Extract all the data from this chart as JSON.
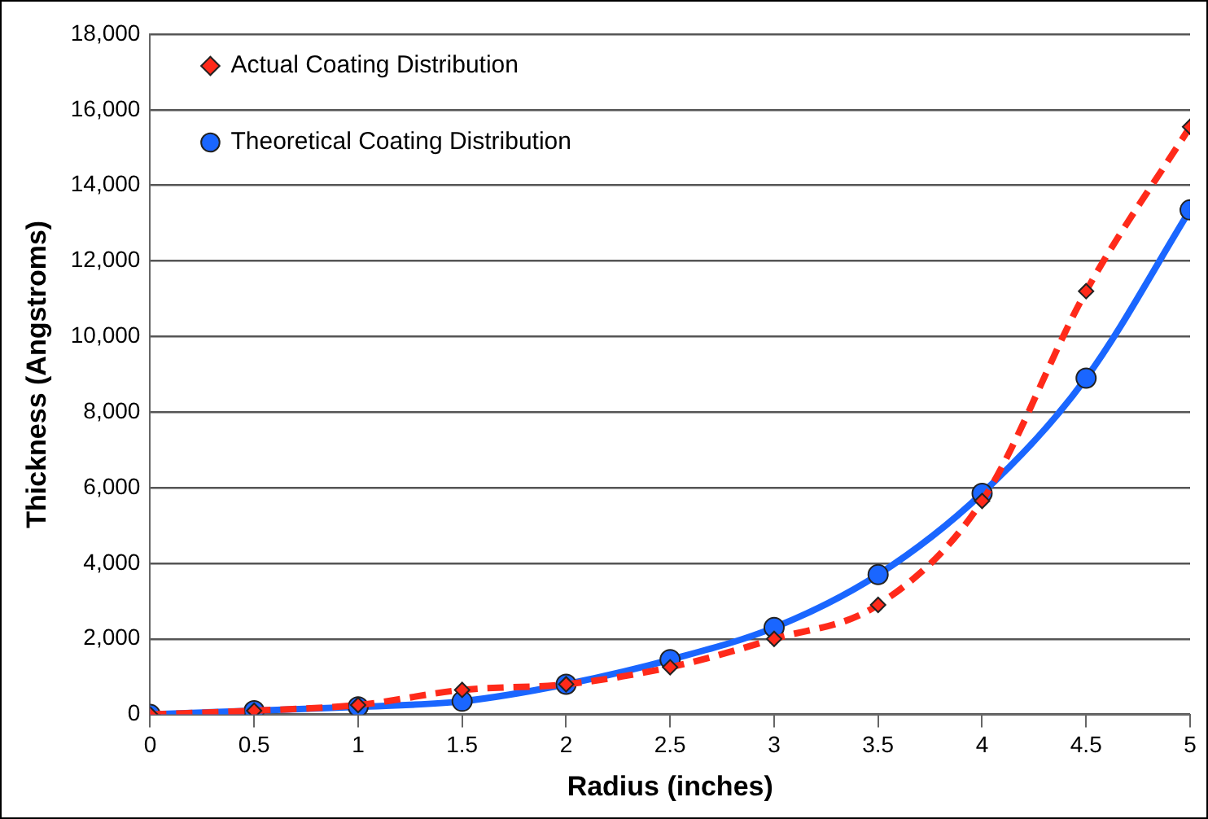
{
  "chart_data": {
    "type": "line",
    "xlabel": "Radius (inches)",
    "ylabel": "Thickness (Angstroms)",
    "x": [
      0,
      0.5,
      1,
      1.5,
      2,
      2.5,
      3,
      3.5,
      4,
      4.5,
      5
    ],
    "series": [
      {
        "name": "Actual Coating Distribution",
        "color": "#ff2a1a",
        "marker": "diamond",
        "line_style": "dashed",
        "values": [
          0,
          100,
          250,
          650,
          800,
          1250,
          2000,
          2900,
          5650,
          11200,
          15550
        ]
      },
      {
        "name": "Theoretical Coating Distribution",
        "color": "#1a66ff",
        "marker": "circle",
        "line_style": "solid",
        "values": [
          0,
          100,
          200,
          350,
          800,
          1450,
          2300,
          3700,
          5850,
          8900,
          13350
        ]
      }
    ],
    "xlim": [
      0,
      5
    ],
    "xticks": [
      0,
      0.5,
      1,
      1.5,
      2,
      2.5,
      3,
      3.5,
      4,
      4.5,
      5
    ],
    "ylim": [
      0,
      18000
    ],
    "yticks": [
      0,
      {
        "value": 2000,
        "label": "2,000"
      },
      {
        "value": 4000,
        "label": "4,000"
      },
      {
        "value": 6000,
        "label": "6,000"
      },
      {
        "value": 8000,
        "label": "8,000"
      },
      {
        "value": 10000,
        "label": "10,000"
      },
      {
        "value": 12000,
        "label": "12,000"
      },
      {
        "value": 14000,
        "label": "14,000"
      },
      {
        "value": 16000,
        "label": "16,000"
      },
      {
        "value": 18000,
        "label": "18,000"
      }
    ],
    "grid": "y",
    "legend": "top left"
  }
}
